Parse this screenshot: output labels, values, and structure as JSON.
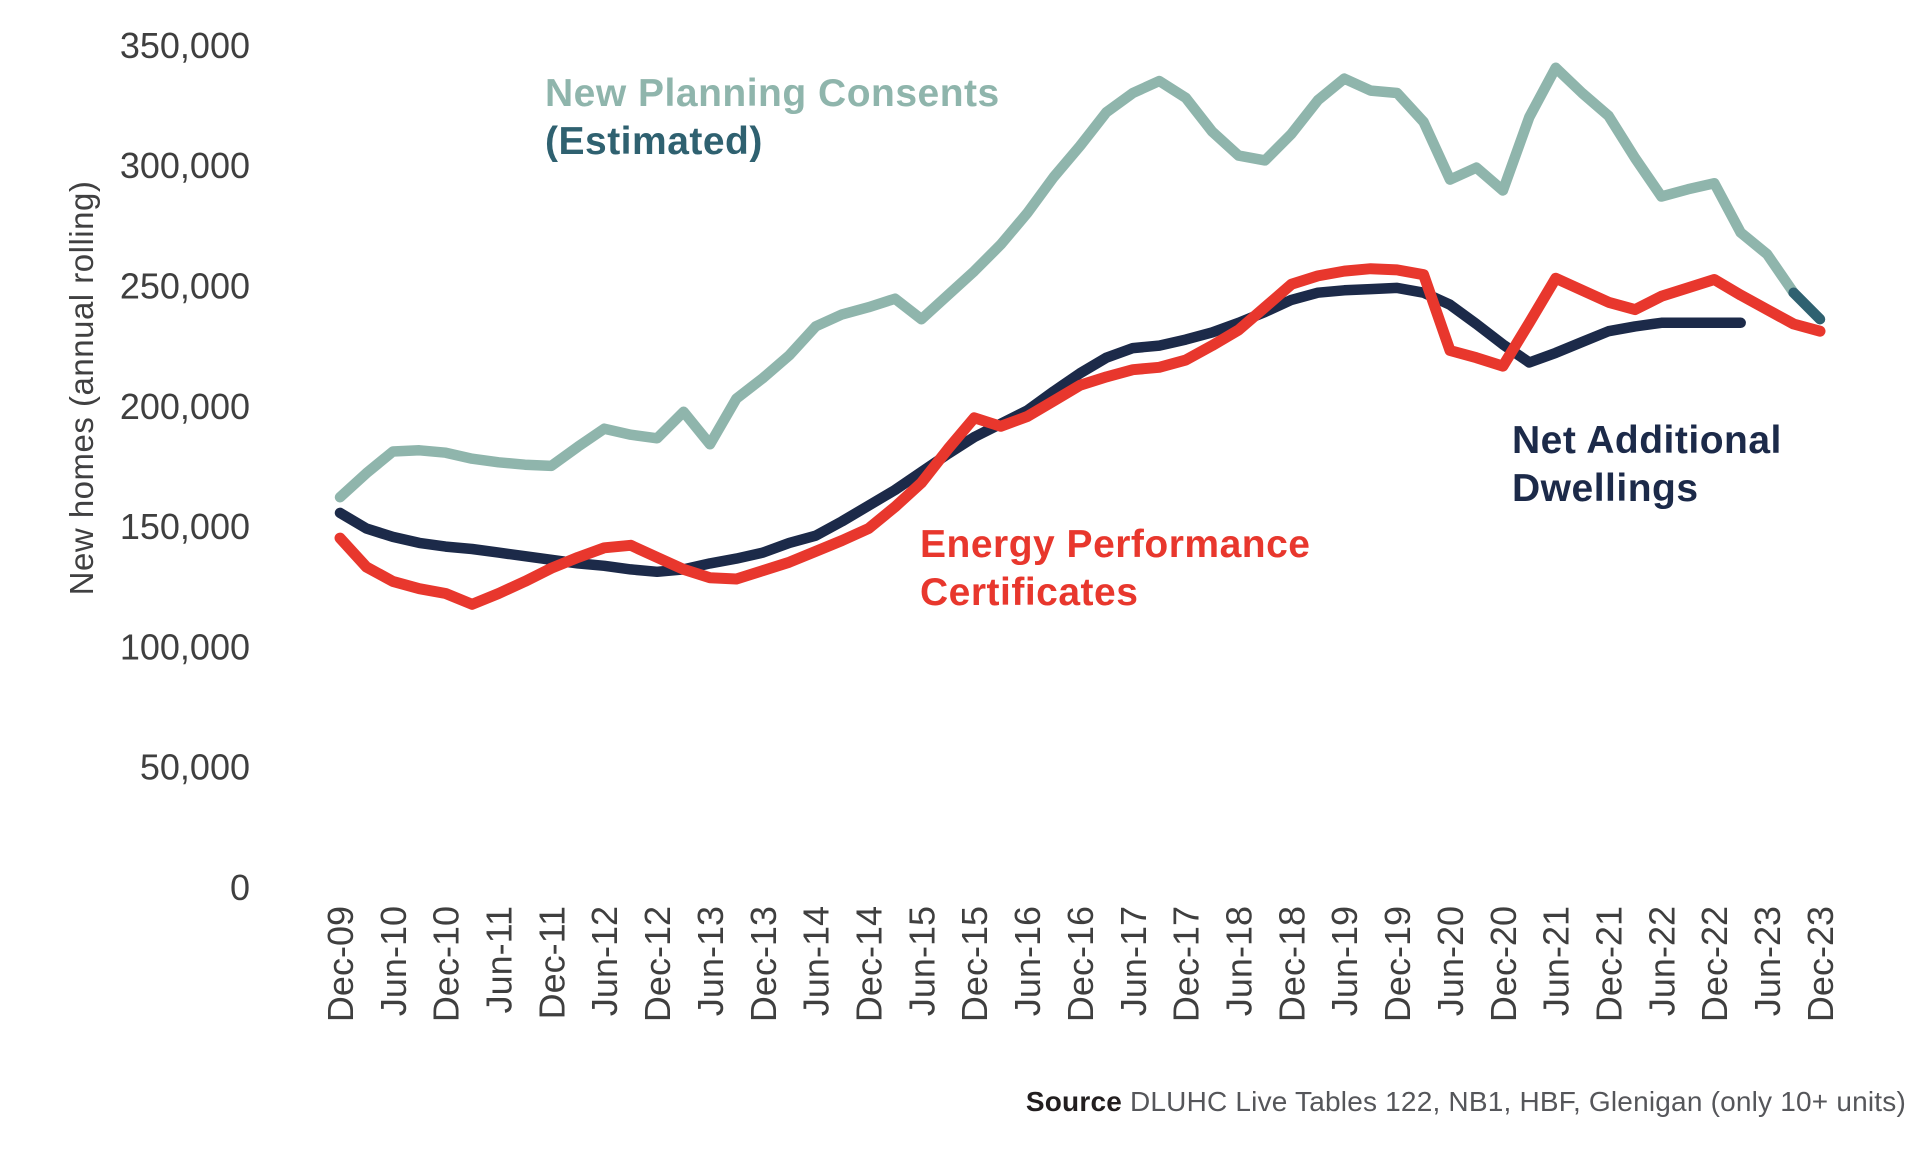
{
  "axis": {
    "ylabel": "New homes (annual rolling)"
  },
  "legend": {
    "planning_line1": "New Planning Consents",
    "planning_line2": "(Estimated)",
    "epc_line1": "Energy Performance",
    "epc_line2": "Certificates",
    "nad_line1": "Net Additional",
    "nad_line2": "Dwellings"
  },
  "source": {
    "label": "Source",
    "text": " DLUHC Live Tables 122, NB1, HBF, Glenigan (only 10+ units)"
  },
  "chart_data": {
    "type": "line",
    "title": "",
    "xlabel": "",
    "ylabel": "New homes (annual rolling)",
    "ylim": [
      0,
      350000
    ],
    "ytick_step": 50000,
    "grid": false,
    "legend_position": "inline-labels",
    "y_tick_labels": [
      "0",
      "50,000",
      "100,000",
      "150,000",
      "200,000",
      "250,000",
      "300,000",
      "350,000"
    ],
    "x_tick_labels": [
      "Dec-09",
      "Jun-10",
      "Dec-10",
      "Jun-11",
      "Dec-11",
      "Jun-12",
      "Dec-12",
      "Jun-13",
      "Dec-13",
      "Jun-14",
      "Dec-14",
      "Jun-15",
      "Dec-15",
      "Jun-16",
      "Dec-16",
      "Jun-17",
      "Dec-17",
      "Jun-18",
      "Dec-18",
      "Jun-19",
      "Dec-19",
      "Jun-20",
      "Dec-20",
      "Jun-21",
      "Dec-21",
      "Jun-22",
      "Dec-22",
      "Jun-23",
      "Dec-23"
    ],
    "x": [
      "Dec-09",
      "Mar-10",
      "Jun-10",
      "Sep-10",
      "Dec-10",
      "Mar-11",
      "Jun-11",
      "Sep-11",
      "Dec-11",
      "Mar-12",
      "Jun-12",
      "Sep-12",
      "Dec-12",
      "Mar-13",
      "Jun-13",
      "Sep-13",
      "Dec-13",
      "Mar-14",
      "Jun-14",
      "Sep-14",
      "Dec-14",
      "Mar-15",
      "Jun-15",
      "Sep-15",
      "Dec-15",
      "Mar-16",
      "Jun-16",
      "Sep-16",
      "Dec-16",
      "Mar-17",
      "Jun-17",
      "Sep-17",
      "Dec-17",
      "Mar-18",
      "Jun-18",
      "Sep-18",
      "Dec-18",
      "Mar-19",
      "Jun-19",
      "Sep-19",
      "Dec-19",
      "Mar-20",
      "Jun-20",
      "Sep-20",
      "Dec-20",
      "Mar-21",
      "Jun-21",
      "Sep-21",
      "Dec-21",
      "Mar-22",
      "Jun-22",
      "Sep-22",
      "Dec-22",
      "Mar-23",
      "Jun-23",
      "Sep-23",
      "Dec-23"
    ],
    "series": [
      {
        "name": "New Planning Consents (Estimated)",
        "color": "#8FB5AC",
        "estimated_tip_color": "#2F6170",
        "estimated_from_index": 55,
        "stroke_width": 10.5,
        "values": [
          162000,
          172000,
          181000,
          181500,
          180500,
          178000,
          176500,
          175500,
          175000,
          183000,
          190500,
          188000,
          186500,
          197500,
          184000,
          203000,
          211500,
          221000,
          233000,
          238000,
          241000,
          244500,
          236000,
          246000,
          256000,
          267000,
          280000,
          295000,
          308000,
          322000,
          330000,
          335000,
          328000,
          314000,
          304000,
          302000,
          313000,
          327000,
          336000,
          331000,
          330000,
          318000,
          294000,
          299000,
          289500,
          320000,
          340500,
          330000,
          320500,
          303000,
          287000,
          290000,
          292500,
          272000,
          263000,
          247000,
          236000
        ]
      },
      {
        "name": "Net Additional Dwellings",
        "color": "#1C2A49",
        "stroke_width": 10.5,
        "values": [
          155500,
          149000,
          145500,
          143000,
          141500,
          140500,
          139000,
          137500,
          136000,
          134500,
          133500,
          132000,
          131000,
          132000,
          134500,
          136500,
          139000,
          143000,
          146000,
          152000,
          158500,
          165000,
          172500,
          180000,
          187000,
          192500,
          198000,
          206000,
          213500,
          220000,
          224000,
          225000,
          227500,
          230500,
          234500,
          239000,
          244000,
          247000,
          248000,
          248500,
          249000,
          247000,
          242000,
          234000,
          225500,
          218000,
          222000,
          226500,
          231000,
          233000,
          234500,
          234500,
          234500,
          234500,
          null,
          null,
          null
        ]
      },
      {
        "name": "Energy Performance Certificates",
        "color": "#E8372D",
        "stroke_width": 11,
        "values": [
          145000,
          133000,
          127000,
          124000,
          122000,
          117500,
          122000,
          127000,
          132500,
          137000,
          141000,
          142000,
          137000,
          132000,
          128500,
          128000,
          131500,
          135000,
          139500,
          144000,
          149000,
          158000,
          168000,
          182000,
          195000,
          191500,
          195500,
          202000,
          208500,
          212000,
          215000,
          216000,
          219000,
          225000,
          231500,
          241000,
          250500,
          254000,
          256000,
          257000,
          256500,
          254500,
          223000,
          220000,
          216500,
          234500,
          253000,
          248000,
          243000,
          240000,
          245500,
          249000,
          252500,
          246000,
          240000,
          234000,
          231000
        ]
      }
    ]
  }
}
